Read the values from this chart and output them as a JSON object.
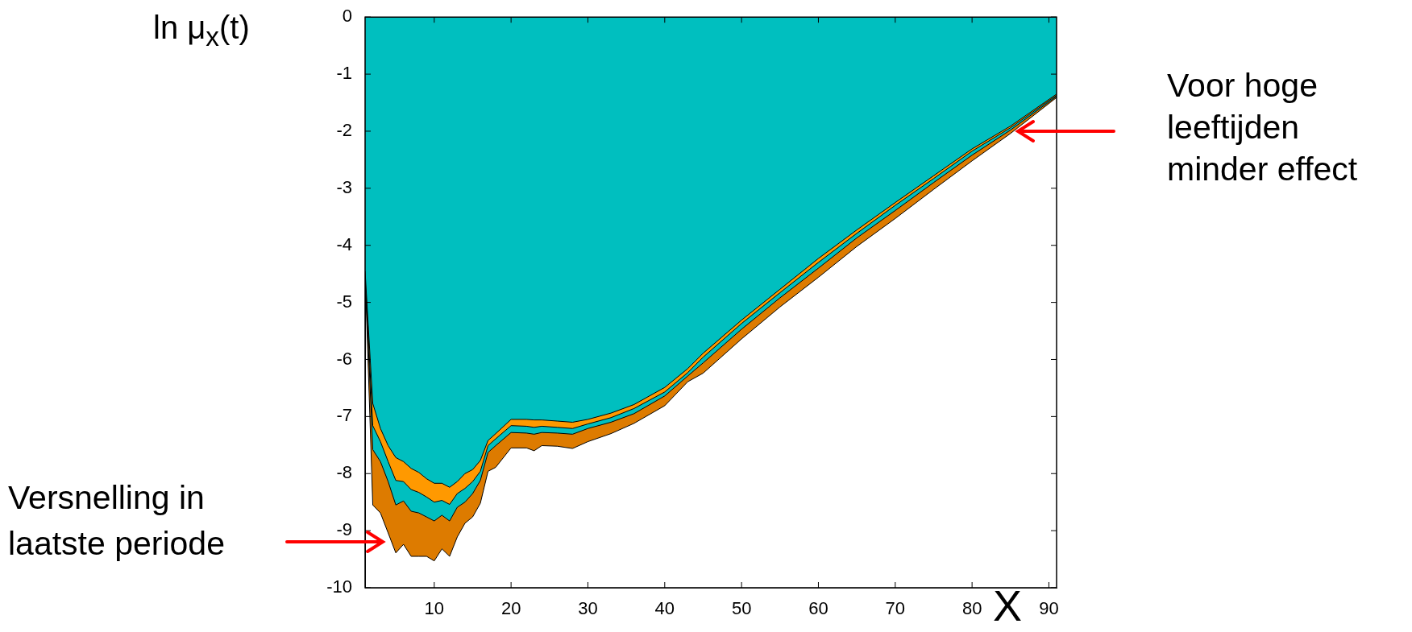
{
  "chart_data": {
    "type": "area",
    "ylabel": "ln μ$_{x}$(t)",
    "xlabel": "X",
    "annotations": [
      "Versnelling in laatste periode",
      "Voor hoge leeftijden minder effect"
    ],
    "x": [
      1,
      2,
      3,
      4,
      5,
      6,
      7,
      8,
      9,
      10,
      11,
      12,
      13,
      14,
      15,
      16,
      17,
      18,
      20,
      22,
      23,
      24,
      26,
      28,
      30,
      33,
      36,
      40,
      43,
      45,
      50,
      55,
      60,
      65,
      70,
      75,
      80,
      85,
      91
    ],
    "series": [
      {
        "color": "#00bfbf",
        "values": [
          -4.45,
          -6.77,
          -7.21,
          -7.51,
          -7.72,
          -7.79,
          -7.91,
          -7.98,
          -8.09,
          -8.17,
          -8.17,
          -8.24,
          -8.14,
          -8.0,
          -7.93,
          -7.77,
          -7.42,
          -7.3,
          -7.05,
          -7.05,
          -7.06,
          -7.06,
          -7.08,
          -7.1,
          -7.05,
          -6.94,
          -6.79,
          -6.49,
          -6.16,
          -5.89,
          -5.31,
          -4.77,
          -4.23,
          -3.73,
          -3.25,
          -2.78,
          -2.31,
          -1.91,
          -1.35
        ]
      },
      {
        "color": "#ff9900",
        "values": [
          -4.45,
          -7.16,
          -7.44,
          -7.79,
          -8.12,
          -8.14,
          -8.28,
          -8.33,
          -8.41,
          -8.5,
          -8.47,
          -8.54,
          -8.35,
          -8.26,
          -8.14,
          -7.96,
          -7.51,
          -7.39,
          -7.16,
          -7.17,
          -7.19,
          -7.17,
          -7.19,
          -7.21,
          -7.13,
          -7.02,
          -6.86,
          -6.57,
          -6.23,
          -5.96,
          -5.37,
          -4.83,
          -4.3,
          -3.79,
          -3.3,
          -2.83,
          -2.35,
          -1.94,
          -1.37
        ]
      },
      {
        "color": "#00bfbf",
        "values": [
          -4.45,
          -7.58,
          -7.79,
          -8.14,
          -8.55,
          -8.48,
          -8.66,
          -8.69,
          -8.76,
          -8.83,
          -8.73,
          -8.83,
          -8.59,
          -8.5,
          -8.35,
          -8.12,
          -7.63,
          -7.51,
          -7.28,
          -7.29,
          -7.31,
          -7.28,
          -7.29,
          -7.31,
          -7.21,
          -7.1,
          -6.95,
          -6.64,
          -6.29,
          -6.06,
          -5.47,
          -4.92,
          -4.4,
          -3.87,
          -3.39,
          -2.9,
          -2.42,
          -1.98,
          -1.39
        ]
      },
      {
        "color": "#dd7b00",
        "values": [
          -4.45,
          -8.55,
          -8.69,
          -9.04,
          -9.39,
          -9.24,
          -9.45,
          -9.45,
          -9.45,
          -9.53,
          -9.32,
          -9.45,
          -9.11,
          -8.87,
          -8.76,
          -8.52,
          -7.96,
          -7.89,
          -7.55,
          -7.55,
          -7.6,
          -7.51,
          -7.52,
          -7.56,
          -7.44,
          -7.3,
          -7.12,
          -6.81,
          -6.39,
          -6.24,
          -5.64,
          -5.08,
          -4.56,
          -4.02,
          -3.53,
          -3.02,
          -2.52,
          -2.04,
          -1.41
        ]
      }
    ],
    "xlim": [
      1,
      91
    ],
    "ylim": [
      -10,
      0
    ],
    "xticks": [
      10,
      20,
      30,
      40,
      50,
      60,
      70,
      80,
      90
    ],
    "yticks": [
      -10,
      -9,
      -8,
      -7,
      -6,
      -5,
      -4,
      -3,
      -2,
      -1,
      0
    ]
  }
}
